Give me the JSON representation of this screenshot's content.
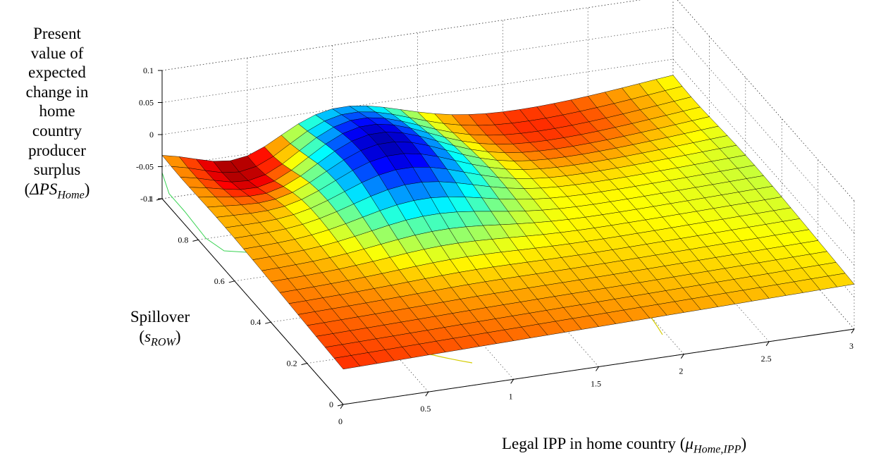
{
  "chart_data": {
    "type": "surface",
    "zlabel": {
      "lines": [
        "Present",
        "value of",
        "expected",
        "change in",
        "home",
        "country",
        "producer",
        "surplus"
      ],
      "symbol_prefix": "(",
      "symbol": "ΔPS",
      "symbol_sub": "Home",
      "symbol_suffix": ")"
    },
    "ylabel": {
      "text": "Spillover",
      "symbol_prefix": "(",
      "symbol": "s",
      "symbol_sub": "ROW",
      "symbol_suffix": ")"
    },
    "xlabel": {
      "text": "Legal IPP in home country (",
      "symbol": "μ",
      "symbol_sub": "Home,IPP",
      "symbol_suffix": ")"
    },
    "xlim": [
      0,
      3
    ],
    "ylim": [
      0,
      1
    ],
    "zlim": [
      -0.1,
      0.1
    ],
    "x_ticks": [
      "0",
      "0.5",
      "1",
      "1.5",
      "2",
      "2.5",
      "3"
    ],
    "y_ticks": [
      "0",
      "0.2",
      "0.4",
      "0.6",
      "0.8",
      "1"
    ],
    "z_ticks": [
      "-0.1",
      "-0.05",
      "0",
      "0.05",
      "0.1"
    ],
    "grid": true,
    "colormap": "jet",
    "x_grid_points": [
      0,
      0.1,
      0.2,
      0.3,
      0.4,
      0.5,
      0.6,
      0.7,
      0.8,
      0.9,
      1.0,
      1.1,
      1.2,
      1.3,
      1.4,
      1.5,
      1.6,
      1.7,
      1.8,
      1.9,
      2.0,
      2.1,
      2.2,
      2.3,
      2.4,
      2.5,
      2.6,
      2.7,
      2.8,
      2.9,
      3.0
    ],
    "y_grid_points": [
      0,
      0.05,
      0.1,
      0.15,
      0.2,
      0.25,
      0.3,
      0.35,
      0.4,
      0.45,
      0.5,
      0.55,
      0.6,
      0.65,
      0.7,
      0.75,
      0.8,
      0.85,
      0.9,
      0.95,
      1.0
    ]
  }
}
